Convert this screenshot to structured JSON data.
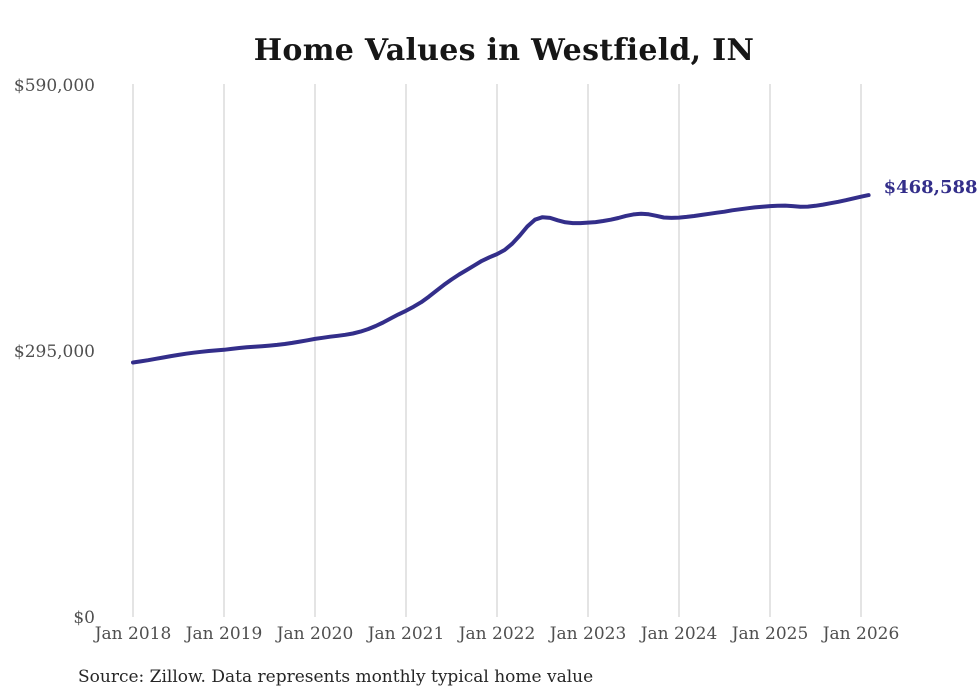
{
  "page": {
    "background_color": "#ffffff"
  },
  "chart": {
    "title": "Home Values in Westfield, IN",
    "end_label": "$468,588",
    "source_note": "Source: Zillow. Data represents monthly typical home value",
    "line_color": "#332e8a",
    "grid_color": "#c9c9c9",
    "tick_color": "#4f4f4f",
    "title_color": "#161616"
  },
  "chart_data": {
    "type": "line",
    "title": "Home Values in Westfield, IN",
    "xlabel": "",
    "ylabel": "",
    "ylim": [
      0,
      590000
    ],
    "grid": "vertical-only",
    "legend": "none",
    "y_ticks": [
      {
        "value": 0,
        "label": "$0"
      },
      {
        "value": 295000,
        "label": "$295,000"
      },
      {
        "value": 590000,
        "label": "$590,000"
      }
    ],
    "x_ticks": [
      "Jan 2018",
      "Jan 2019",
      "Jan 2020",
      "Jan 2021",
      "Jan 2022",
      "Jan 2023",
      "Jan 2024",
      "Jan 2025",
      "Jan 2026"
    ],
    "end_annotation": "$468,588",
    "series": [
      {
        "name": "Monthly typical home value",
        "x": [
          "2018-01",
          "2018-02",
          "2018-03",
          "2018-04",
          "2018-05",
          "2018-06",
          "2018-07",
          "2018-08",
          "2018-09",
          "2018-10",
          "2018-11",
          "2018-12",
          "2019-01",
          "2019-02",
          "2019-03",
          "2019-04",
          "2019-05",
          "2019-06",
          "2019-07",
          "2019-08",
          "2019-09",
          "2019-10",
          "2019-11",
          "2019-12",
          "2020-01",
          "2020-02",
          "2020-03",
          "2020-04",
          "2020-05",
          "2020-06",
          "2020-07",
          "2020-08",
          "2020-09",
          "2020-10",
          "2020-11",
          "2020-12",
          "2021-01",
          "2021-02",
          "2021-03",
          "2021-04",
          "2021-05",
          "2021-06",
          "2021-07",
          "2021-08",
          "2021-09",
          "2021-10",
          "2021-11",
          "2021-12",
          "2022-01",
          "2022-02",
          "2022-03",
          "2022-04",
          "2022-05",
          "2022-06",
          "2022-07",
          "2022-08",
          "2022-09",
          "2022-10",
          "2022-11",
          "2022-12",
          "2023-01",
          "2023-02",
          "2023-03",
          "2023-04",
          "2023-05",
          "2023-06",
          "2023-07",
          "2023-08",
          "2023-09",
          "2023-10",
          "2023-11",
          "2023-12",
          "2024-01",
          "2024-02",
          "2024-03",
          "2024-04",
          "2024-05",
          "2024-06",
          "2024-07",
          "2024-08",
          "2024-09",
          "2024-10",
          "2024-11",
          "2024-12",
          "2025-01",
          "2025-02",
          "2025-03",
          "2025-04",
          "2025-05",
          "2025-06",
          "2025-07",
          "2025-08",
          "2025-09",
          "2025-10",
          "2025-11",
          "2025-12",
          "2026-01",
          "2026-02"
        ],
        "values": [
          284000,
          285200,
          286500,
          288000,
          289500,
          291000,
          292400,
          293700,
          294800,
          295800,
          296600,
          297300,
          298000,
          299000,
          300000,
          300800,
          301400,
          302000,
          302600,
          303400,
          304400,
          305600,
          307000,
          308500,
          310000,
          311200,
          312400,
          313400,
          314500,
          316000,
          318000,
          320800,
          324200,
          328200,
          332600,
          337000,
          341000,
          345500,
          350500,
          356500,
          363000,
          369500,
          375500,
          381000,
          386000,
          391000,
          396000,
          400000,
          403500,
          408000,
          415000,
          424000,
          434000,
          441500,
          444200,
          443400,
          440800,
          438600,
          437700,
          437700,
          438200,
          438800,
          440000,
          441500,
          443300,
          445600,
          447300,
          448000,
          447400,
          445800,
          443900,
          443400,
          443800,
          444500,
          445500,
          446800,
          448000,
          449200,
          450300,
          451800,
          452900,
          454000,
          455000,
          455800,
          456400,
          456900,
          457000,
          456400,
          455700,
          455900,
          456800,
          458100,
          459600,
          461200,
          463000,
          464900,
          466800,
          468588
        ],
        "latest_value": 468588
      }
    ]
  }
}
